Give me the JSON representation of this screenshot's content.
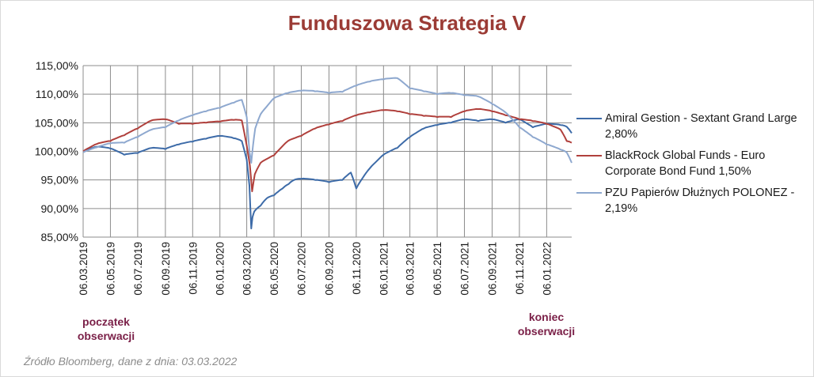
{
  "chart_data": {
    "type": "line",
    "title": "Funduszowa Strategia V",
    "ylim": [
      85,
      115
    ],
    "y_ticks": [
      "85,00%",
      "90,00%",
      "95,00%",
      "100,00%",
      "105,00%",
      "110,00%",
      "115,00%"
    ],
    "y_tick_values": [
      85,
      90,
      95,
      100,
      105,
      110,
      115
    ],
    "x_range": [
      "2019-03-06",
      "2022-03-03"
    ],
    "x_ticks": [
      "06.03.2019",
      "06.05.2019",
      "06.07.2019",
      "06.09.2019",
      "06.11.2019",
      "06.01.2020",
      "06.03.2020",
      "06.05.2020",
      "06.07.2020",
      "06.09.2020",
      "06.11.2020",
      "06.01.2021",
      "06.03.2021",
      "06.05.2021",
      "06.07.2021",
      "06.09.2021",
      "06.11.2021",
      "06.01.2022"
    ],
    "grid": true,
    "legend_position": "right",
    "series": [
      {
        "name": "Amiral Gestion - Sextant Grand Large 2,80%",
        "color": "#3d6ba8",
        "x": [
          "2019-03-06",
          "2019-04-06",
          "2019-05-06",
          "2019-06-06",
          "2019-07-06",
          "2019-08-06",
          "2019-09-06",
          "2019-10-06",
          "2019-11-06",
          "2019-12-06",
          "2020-01-06",
          "2020-02-06",
          "2020-02-24",
          "2020-03-06",
          "2020-03-12",
          "2020-03-16",
          "2020-03-19",
          "2020-03-23",
          "2020-04-06",
          "2020-04-20",
          "2020-05-06",
          "2020-05-25",
          "2020-06-08",
          "2020-06-20",
          "2020-07-06",
          "2020-08-06",
          "2020-09-06",
          "2020-10-06",
          "2020-10-25",
          "2020-11-06",
          "2020-11-20",
          "2020-12-06",
          "2021-01-06",
          "2021-02-06",
          "2021-03-06",
          "2021-04-06",
          "2021-05-06",
          "2021-06-06",
          "2021-07-06",
          "2021-08-06",
          "2021-09-06",
          "2021-10-06",
          "2021-11-06",
          "2021-12-06",
          "2022-01-06",
          "2022-02-06",
          "2022-02-20",
          "2022-03-03"
        ],
        "values": [
          100.0,
          100.8,
          100.5,
          99.4,
          99.7,
          100.6,
          100.4,
          101.2,
          101.7,
          102.2,
          102.7,
          102.3,
          101.8,
          98.5,
          94.0,
          86.5,
          88.5,
          89.5,
          90.5,
          91.8,
          92.3,
          93.5,
          94.3,
          95.0,
          95.2,
          95.0,
          94.6,
          95.0,
          96.3,
          93.5,
          95.3,
          97.0,
          99.4,
          100.6,
          102.5,
          104.0,
          104.6,
          105.0,
          105.6,
          105.3,
          105.6,
          105.0,
          105.6,
          104.2,
          104.8,
          104.6,
          104.3,
          103.2
        ]
      },
      {
        "name": "BlackRock Global Funds - Euro Corporate Bond Fund 1,50%",
        "color": "#b0403c",
        "x": [
          "2019-03-06",
          "2019-04-06",
          "2019-05-06",
          "2019-06-06",
          "2019-07-06",
          "2019-08-06",
          "2019-09-06",
          "2019-10-06",
          "2019-11-06",
          "2019-12-06",
          "2020-01-06",
          "2020-02-06",
          "2020-02-24",
          "2020-03-06",
          "2020-03-13",
          "2020-03-18",
          "2020-03-24",
          "2020-04-06",
          "2020-05-06",
          "2020-06-06",
          "2020-07-06",
          "2020-08-06",
          "2020-09-06",
          "2020-10-06",
          "2020-11-06",
          "2020-12-06",
          "2021-01-06",
          "2021-02-06",
          "2021-03-06",
          "2021-04-06",
          "2021-05-06",
          "2021-06-06",
          "2021-07-06",
          "2021-08-06",
          "2021-09-06",
          "2021-10-06",
          "2021-11-06",
          "2021-12-06",
          "2022-01-06",
          "2022-02-06",
          "2022-02-20",
          "2022-03-03"
        ],
        "values": [
          100.0,
          101.3,
          101.8,
          102.8,
          104.0,
          105.4,
          105.6,
          104.8,
          104.8,
          105.0,
          105.2,
          105.5,
          105.4,
          101.0,
          97.5,
          93.0,
          96.0,
          98.0,
          99.3,
          101.8,
          102.7,
          104.0,
          104.7,
          105.3,
          106.3,
          106.8,
          107.2,
          107.0,
          106.5,
          106.2,
          106.0,
          106.0,
          107.0,
          107.4,
          107.0,
          106.3,
          105.6,
          105.3,
          104.8,
          103.8,
          101.8,
          101.5
        ]
      },
      {
        "name": "PZU Papierów Dłużnych POLONEZ - 2,19%",
        "color": "#8ea8cf",
        "x": [
          "2019-03-06",
          "2019-04-06",
          "2019-05-06",
          "2019-06-06",
          "2019-07-06",
          "2019-08-06",
          "2019-09-06",
          "2019-10-06",
          "2019-11-06",
          "2019-12-06",
          "2020-01-06",
          "2020-02-06",
          "2020-02-24",
          "2020-03-06",
          "2020-03-12",
          "2020-03-16",
          "2020-03-20",
          "2020-03-25",
          "2020-04-06",
          "2020-05-06",
          "2020-06-06",
          "2020-07-06",
          "2020-08-06",
          "2020-09-06",
          "2020-10-06",
          "2020-11-06",
          "2020-12-06",
          "2021-01-06",
          "2021-02-06",
          "2021-03-06",
          "2021-04-06",
          "2021-05-06",
          "2021-06-06",
          "2021-07-06",
          "2021-08-06",
          "2021-09-06",
          "2021-10-06",
          "2021-11-06",
          "2021-12-06",
          "2022-01-06",
          "2022-02-06",
          "2022-02-20",
          "2022-03-03"
        ],
        "values": [
          99.8,
          100.7,
          101.4,
          101.5,
          102.5,
          103.8,
          104.2,
          105.4,
          106.3,
          107.0,
          107.6,
          108.5,
          109.0,
          106.0,
          100.0,
          98.0,
          101.0,
          104.0,
          106.5,
          109.3,
          110.2,
          110.6,
          110.5,
          110.2,
          110.4,
          111.5,
          112.2,
          112.6,
          112.8,
          111.0,
          110.5,
          110.0,
          110.2,
          109.8,
          109.6,
          108.3,
          106.8,
          104.2,
          102.5,
          101.2,
          100.3,
          99.8,
          98.0
        ]
      }
    ],
    "annotations": [
      {
        "text": "początek obserwacji",
        "x": "2019-03-06"
      },
      {
        "text": "koniec obserwacji",
        "x": "2022-03-03"
      }
    ],
    "source": "Źródło Bloomberg, dane z dnia: 03.03.2022"
  },
  "legend": {
    "items": [
      {
        "label": "Amiral Gestion - Sextant Grand Large 2,80%",
        "color": "#3d6ba8"
      },
      {
        "label": "BlackRock Global Funds - Euro Corporate Bond Fund 1,50%",
        "color": "#b0403c"
      },
      {
        "label": "PZU Papierów Dłużnych POLONEZ - 2,19%",
        "color": "#8ea8cf"
      }
    ]
  },
  "annotations": {
    "start": "początek obserwacji",
    "end": "koniec obserwacji"
  }
}
